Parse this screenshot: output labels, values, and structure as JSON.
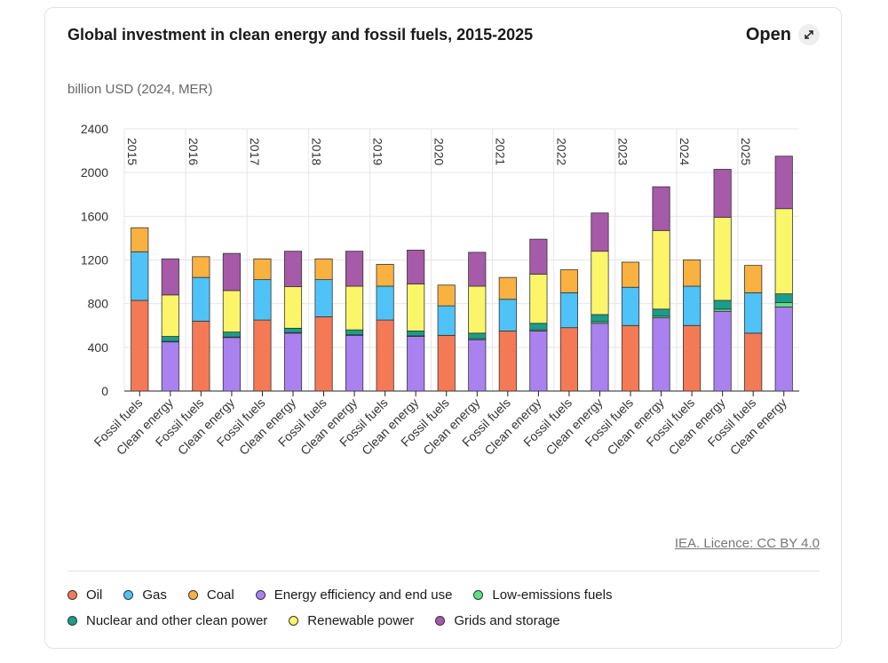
{
  "chart_data": {
    "type": "stacked_bar",
    "title": "Global investment in clean energy and fossil fuels, 2015-2025",
    "button": "Open",
    "y_label": "billion USD (2024, MER)",
    "source": "IEA. Licence: CC BY 4.0",
    "groups": [
      "2015",
      "2016",
      "2017",
      "2018",
      "2019",
      "2020",
      "2021",
      "2022",
      "2023",
      "2024",
      "2025"
    ],
    "categories": [
      "Fossil fuels",
      "Clean energy",
      "Fossil fuels",
      "Clean energy",
      "Fossil fuels",
      "Clean energy",
      "Fossil fuels",
      "Clean energy",
      "Fossil fuels",
      "Clean energy",
      "Fossil fuels",
      "Clean energy",
      "Fossil fuels",
      "Clean energy",
      "Fossil fuels",
      "Clean energy",
      "Fossil fuels",
      "Clean energy",
      "Fossil fuels",
      "Clean energy",
      "Fossil fuels",
      "Clean energy"
    ],
    "ylim": [
      0,
      2400
    ],
    "yticks": [
      0,
      400,
      800,
      1200,
      1600,
      2000,
      2400
    ],
    "grid": true,
    "series": [
      {
        "name": "Oil",
        "color": "#f47a55",
        "values": [
          830,
          null,
          640,
          null,
          650,
          null,
          680,
          null,
          650,
          null,
          510,
          null,
          550,
          null,
          580,
          null,
          600,
          null,
          600,
          null,
          530,
          null
        ]
      },
      {
        "name": "Gas",
        "color": "#4fc3f7",
        "values": [
          445,
          null,
          400,
          null,
          370,
          null,
          340,
          null,
          310,
          null,
          270,
          null,
          290,
          null,
          320,
          null,
          350,
          null,
          360,
          null,
          370,
          null
        ]
      },
      {
        "name": "Coal",
        "color": "#f9b140",
        "values": [
          220,
          null,
          190,
          null,
          190,
          null,
          190,
          null,
          200,
          null,
          190,
          null,
          200,
          null,
          210,
          null,
          230,
          null,
          240,
          null,
          250,
          null
        ]
      },
      {
        "name": "Energy efficiency and end use",
        "color": "#a982f0",
        "values": [
          null,
          450,
          null,
          490,
          null,
          530,
          null,
          510,
          null,
          500,
          null,
          470,
          null,
          550,
          null,
          620,
          null,
          670,
          null,
          730,
          null,
          770
        ]
      },
      {
        "name": "Low-emissions fuels",
        "color": "#5ee08a",
        "values": [
          null,
          5,
          null,
          5,
          null,
          5,
          null,
          5,
          null,
          5,
          null,
          10,
          null,
          10,
          null,
          15,
          null,
          15,
          null,
          20,
          null,
          40
        ]
      },
      {
        "name": "Nuclear and other clean power",
        "color": "#1a9e8c",
        "values": [
          null,
          45,
          null,
          45,
          null,
          40,
          null,
          45,
          null,
          45,
          null,
          50,
          null,
          60,
          null,
          65,
          null,
          65,
          null,
          80,
          null,
          80
        ]
      },
      {
        "name": "Renewable power",
        "color": "#fbf56a",
        "values": [
          null,
          380,
          null,
          380,
          null,
          380,
          null,
          400,
          null,
          430,
          null,
          430,
          null,
          450,
          null,
          580,
          null,
          720,
          null,
          760,
          null,
          780
        ]
      },
      {
        "name": "Grids and storage",
        "color": "#a65aa8",
        "values": [
          null,
          330,
          null,
          340,
          null,
          325,
          null,
          320,
          null,
          310,
          null,
          310,
          null,
          320,
          null,
          350,
          null,
          400,
          null,
          440,
          null,
          480
        ]
      }
    ]
  }
}
